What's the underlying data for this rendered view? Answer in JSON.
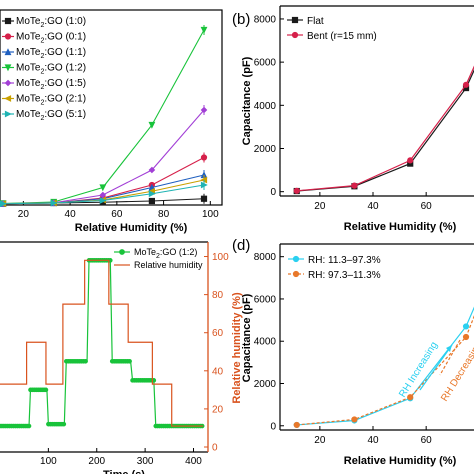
{
  "chart_data": [
    {
      "type": "line",
      "panel": "",
      "xlabel": "Relative Humidity (%)",
      "ylabel": "",
      "xlim": [
        10,
        105
      ],
      "ylim": [
        0,
        7800
      ],
      "xticks": [
        "20",
        "40",
        "60",
        "80",
        "100"
      ],
      "x": [
        11.3,
        33,
        54,
        75,
        97.3
      ],
      "series": [
        {
          "name": "MoTe2:GO (1:0)",
          "name_main": "MoTe",
          "name_rest": ":GO (1:0)",
          "color": "#1a1a1a",
          "marker": "square",
          "values": [
            60,
            80,
            110,
            160,
            250
          ]
        },
        {
          "name": "MoTe2:GO (0:1)",
          "name_main": "MoTe",
          "name_rest": ":GO (0:1)",
          "color": "#d6204a",
          "marker": "circle",
          "values": [
            50,
            80,
            280,
            800,
            1900
          ]
        },
        {
          "name": "MoTe2:GO (1:1)",
          "name_main": "MoTe",
          "name_rest": ":GO (1:1)",
          "color": "#1f5fbf",
          "marker": "triangle-up",
          "values": [
            50,
            80,
            250,
            700,
            1200
          ]
        },
        {
          "name": "MoTe2:GO (1:2)",
          "name_main": "MoTe",
          "name_rest": ":GO (1:2)",
          "color": "#18c33a",
          "marker": "triangle-down",
          "values": [
            60,
            120,
            700,
            3200,
            7000
          ]
        },
        {
          "name": "MoTe2:GO (1:5)",
          "name_main": "MoTe",
          "name_rest": ":GO (1:5)",
          "color": "#a23fd6",
          "marker": "diamond",
          "values": [
            50,
            90,
            400,
            1400,
            3800
          ]
        },
        {
          "name": "MoTe2:GO (2:1)",
          "name_main": "MoTe",
          "name_rest": ":GO (2:1)",
          "color": "#c9a000",
          "marker": "triangle-left",
          "values": [
            50,
            80,
            200,
            550,
            1000
          ]
        },
        {
          "name": "MoTe2:GO (5:1)",
          "name_main": "MoTe",
          "name_rest": ":GO (5:1)",
          "color": "#1fb3b3",
          "marker": "triangle-right",
          "values": [
            50,
            80,
            180,
            450,
            800
          ]
        }
      ]
    },
    {
      "type": "line",
      "panel": "(b)",
      "xlabel": "Relative Humidity (%)",
      "ylabel": "Capacitance (pF)",
      "xlim": [
        5,
        78
      ],
      "ylim": [
        -200,
        8600
      ],
      "xticks": [
        "20",
        "40",
        "60"
      ],
      "yticks": [
        "0",
        "2000",
        "4000",
        "6000",
        "8000"
      ],
      "x": [
        11.3,
        33,
        54,
        75,
        85
      ],
      "series": [
        {
          "name": "Flat",
          "color": "#1a1a1a",
          "marker": "square",
          "values": [
            30,
            250,
            1300,
            4800,
            7500
          ]
        },
        {
          "name": "Bent (r=15 mm)",
          "color": "#d6204a",
          "marker": "circle",
          "values": [
            40,
            280,
            1450,
            4950,
            7700
          ]
        }
      ]
    },
    {
      "type": "line",
      "panel": "",
      "xlabel": "Time (s)",
      "ylabel_right": "Relative humidity (%)",
      "xlim": [
        0,
        430
      ],
      "ylim_right": [
        0,
        105
      ],
      "xticks": [
        "100",
        "200",
        "300",
        "400"
      ],
      "yticks_right": [
        "0",
        "20",
        "40",
        "60",
        "80",
        "100"
      ],
      "series": [
        {
          "name": "MoTe2:GO (1:2)",
          "name_main": "MoTe",
          "name_rest": ":GO (1:2)",
          "color": "#18c33a",
          "marker": "circle",
          "points": [
            [
              0,
              11
            ],
            [
              60,
              11
            ],
            [
              63,
              30
            ],
            [
              97,
              30
            ],
            [
              100,
              12
            ],
            [
              133,
              12
            ],
            [
              137,
              45
            ],
            [
              180,
              45
            ],
            [
              184,
              98
            ],
            [
              228,
              98
            ],
            [
              232,
              45
            ],
            [
              270,
              45
            ],
            [
              274,
              35
            ],
            [
              318,
              35
            ],
            [
              322,
              11
            ],
            [
              420,
              11
            ]
          ]
        },
        {
          "name": "Relative humidity",
          "color": "#d9531e",
          "points": [
            [
              0,
              33
            ],
            [
              55,
              33
            ],
            [
              55,
              55
            ],
            [
              95,
              55
            ],
            [
              95,
              33
            ],
            [
              130,
              33
            ],
            [
              130,
              75
            ],
            [
              175,
              75
            ],
            [
              175,
              98
            ],
            [
              225,
              98
            ],
            [
              225,
              75
            ],
            [
              265,
              75
            ],
            [
              265,
              55
            ],
            [
              315,
              55
            ],
            [
              315,
              33
            ],
            [
              355,
              33
            ],
            [
              355,
              11
            ],
            [
              420,
              11
            ]
          ]
        }
      ]
    },
    {
      "type": "line",
      "panel": "(d)",
      "xlabel": "Relative Humidity (%)",
      "ylabel": "Capacitance (pF)",
      "xlim": [
        5,
        78
      ],
      "ylim": [
        -200,
        8600
      ],
      "xticks": [
        "20",
        "40",
        "60"
      ],
      "yticks": [
        "0",
        "2000",
        "4000",
        "6000",
        "8000"
      ],
      "x": [
        11.3,
        33,
        54,
        75,
        85
      ],
      "series": [
        {
          "name": "RH: 11.3–97.3%",
          "color": "#2ad0f0",
          "marker": "circle",
          "values": [
            40,
            250,
            1300,
            4700,
            7600
          ]
        },
        {
          "name": "RH: 97.3–11.3%",
          "color": "#e8782a",
          "marker": "circle",
          "values": [
            40,
            300,
            1350,
            4200,
            7400
          ]
        }
      ],
      "annotations": [
        "RH Increasing",
        "RH Decreasing"
      ]
    }
  ]
}
